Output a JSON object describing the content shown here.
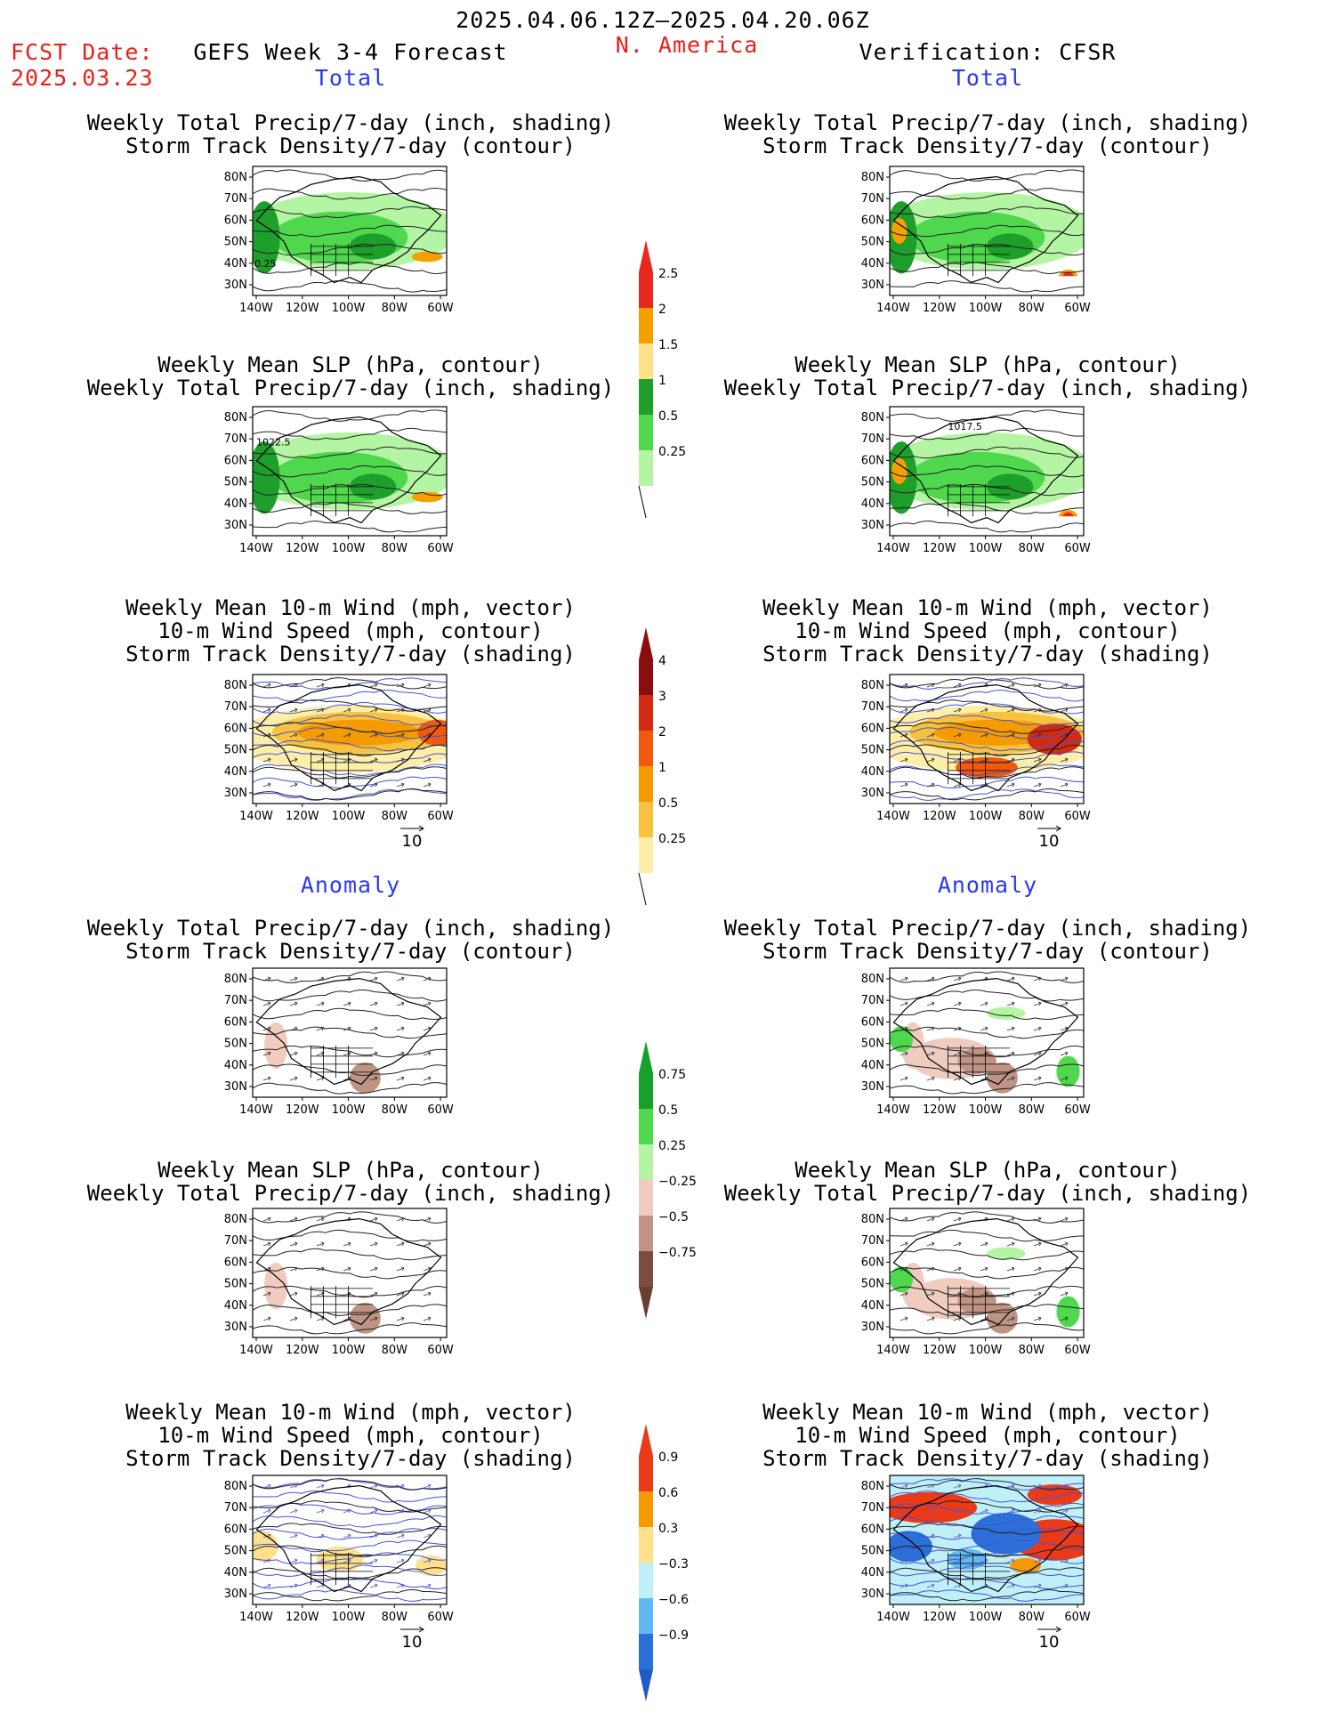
{
  "header": {
    "date_range": "2025.04.06.12Z–2025.04.20.06Z",
    "fcst_label": "FCST Date:",
    "fcst_date": "2025.03.23",
    "model": "GEFS Week 3-4 Forecast",
    "region": "N. America",
    "verification": "Verification: CFSR"
  },
  "sections": {
    "total": "Total",
    "anomaly": "Anomaly"
  },
  "panel_titles": {
    "precip_track": [
      "Weekly Total Precip/7-day (inch, shading)",
      "Storm Track Density/7-day (contour)"
    ],
    "slp_precip": [
      "Weekly Mean SLP (hPa, contour)",
      "Weekly Total Precip/7-day (inch, shading)"
    ],
    "wind_track": [
      "Weekly Mean 10-m Wind (mph, vector)",
      "10-m Wind Speed (mph, contour)",
      "Storm Track Density/7-day (shading)"
    ]
  },
  "axes": {
    "lat_labels": [
      "80N",
      "70N",
      "60N",
      "50N",
      "40N",
      "30N"
    ],
    "lon_labels": [
      "140W",
      "120W",
      "100W",
      "80W",
      "60W"
    ]
  },
  "vector_reference": "10",
  "panel_annotations": {
    "fcst_total_precip": "0.25",
    "fcst_total_slp": "1022.5",
    "verif_total_slp": "1017.5"
  },
  "colorbars": [
    {
      "name": "total-precip",
      "labels": [
        "2.5",
        "2",
        "1.5",
        "1",
        "0.5",
        "0.25"
      ],
      "colors": [
        "#e8281e",
        "#f5a000",
        "#fde28a",
        "#1e9e2a",
        "#4fd74d",
        "#b4f5a4"
      ]
    },
    {
      "name": "total-storm-track",
      "labels": [
        "4",
        "3",
        "2",
        "1",
        "0.5",
        "0.25"
      ],
      "colors": [
        "#8b0e0e",
        "#d42a12",
        "#f05a0c",
        "#f59a00",
        "#f8c23e",
        "#fdeea8"
      ]
    },
    {
      "name": "anom-precip",
      "labels": [
        "0.75",
        "0.5",
        "0.25",
        "−0.25",
        "−0.5",
        "−0.75"
      ],
      "colors": [
        "#16a22a",
        "#4fd74d",
        "#b4f5a4",
        "#f0ccc0",
        "#c09484",
        "#7a4e3e"
      ]
    },
    {
      "name": "anom-storm-track",
      "labels": [
        "0.9",
        "0.6",
        "0.3",
        "−0.3",
        "−0.6",
        "−0.9"
      ],
      "colors": [
        "#ea3a18",
        "#f59a00",
        "#fde08a",
        "#bff0f8",
        "#62b8f0",
        "#2a70d8"
      ]
    }
  ],
  "map_fills": {
    "precip_total": [
      "#b4f5a4",
      "#4fd74d",
      "#1e9e2a",
      "#f5a000",
      "#e8281e"
    ],
    "track_total": [
      "#fdeea8",
      "#f8c23e",
      "#f59a00",
      "#f05a0c",
      "#d42a12"
    ],
    "precip_anom": [
      "#f0ccc0",
      "#c09484",
      "#b4f5a4",
      "#4fd74d"
    ],
    "track_anom": [
      "#fde08a",
      "#f59a00",
      "#bff0f8",
      "#62b8f0",
      "#2a70d8",
      "#ea3a18"
    ]
  }
}
